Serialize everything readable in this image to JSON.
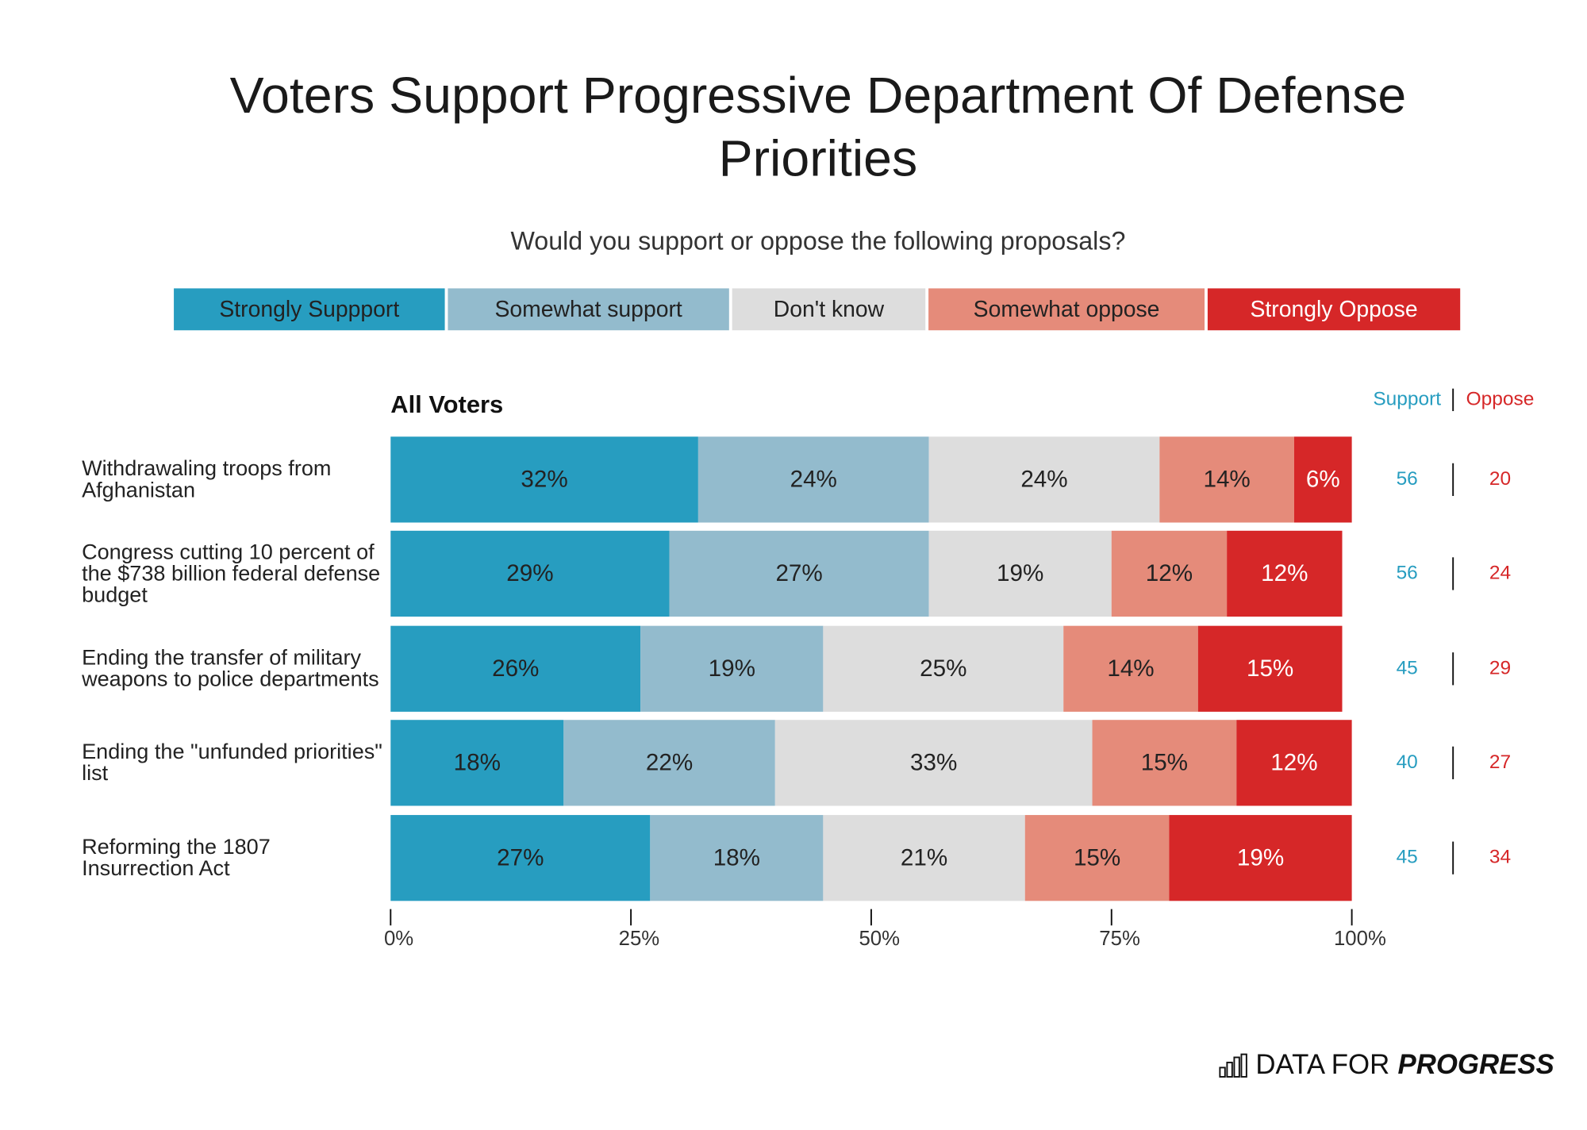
{
  "chart_data": {
    "type": "stacked_bar_horizontal",
    "title": "Voters Support Progressive Department Of Defense Priorities",
    "subtitle": "Would you support or oppose the following proposals?",
    "panel_title": "All Voters",
    "categories": [
      "Withdrawaling troops from Afghanistan",
      "Congress cutting 10 percent of the $738 billion federal defense budget",
      "Ending the transfer of military weapons to police departments",
      "Ending the \"unfunded priorities\" list",
      "Reforming the 1807 Insurrection Act"
    ],
    "series": [
      {
        "name": "Strongly Suppport",
        "color": "#279dc0",
        "values": [
          32,
          29,
          26,
          18,
          27
        ],
        "value_labels": [
          "32%",
          "29%",
          "26%",
          "18%",
          "27%"
        ]
      },
      {
        "name": "Somewhat support",
        "color": "#93bbcd",
        "values": [
          24,
          27,
          19,
          22,
          18
        ],
        "value_labels": [
          "24%",
          "27%",
          "19%",
          "22%",
          "18%"
        ]
      },
      {
        "name": "Don't know",
        "color": "#dddddd",
        "values": [
          24,
          19,
          25,
          33,
          21
        ],
        "value_labels": [
          "24%",
          "19%",
          "25%",
          "33%",
          "21%"
        ]
      },
      {
        "name": "Somewhat oppose",
        "color": "#e58b7a",
        "values": [
          14,
          12,
          14,
          15,
          15
        ],
        "value_labels": [
          "14%",
          "12%",
          "14%",
          "15%",
          "15%"
        ]
      },
      {
        "name": "Strongly Oppose",
        "color": "#d62728",
        "values": [
          6,
          12,
          15,
          12,
          19
        ],
        "value_labels": [
          "6%",
          "12%",
          "15%",
          "12%",
          "19%"
        ]
      }
    ],
    "support": {
      "label": "Support",
      "color": "#279dc0",
      "values": [
        56,
        56,
        45,
        40,
        45
      ]
    },
    "oppose": {
      "label": "Oppose",
      "color": "#d62728",
      "values": [
        20,
        24,
        29,
        27,
        34
      ]
    },
    "xlim": [
      0,
      100
    ],
    "xticks": [
      {
        "value": 0,
        "label": "0%"
      },
      {
        "value": 25,
        "label": "25%"
      },
      {
        "value": 50,
        "label": "50%"
      },
      {
        "value": 75,
        "label": "75%"
      },
      {
        "value": 100,
        "label": "100%"
      }
    ],
    "grid": false,
    "legend": "top"
  },
  "logo": {
    "text": "DATA FOR",
    "emphasis": "PROGRESS"
  }
}
